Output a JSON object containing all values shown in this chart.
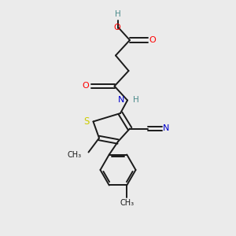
{
  "bg_color": "#ebebeb",
  "bond_color": "#1a1a1a",
  "atom_colors": {
    "O": "#ff0000",
    "N": "#0000cd",
    "S": "#cccc00",
    "H": "#4a8a8a",
    "CN_N": "#0000cd"
  },
  "figsize": [
    3.0,
    3.0
  ],
  "dpi": 100
}
